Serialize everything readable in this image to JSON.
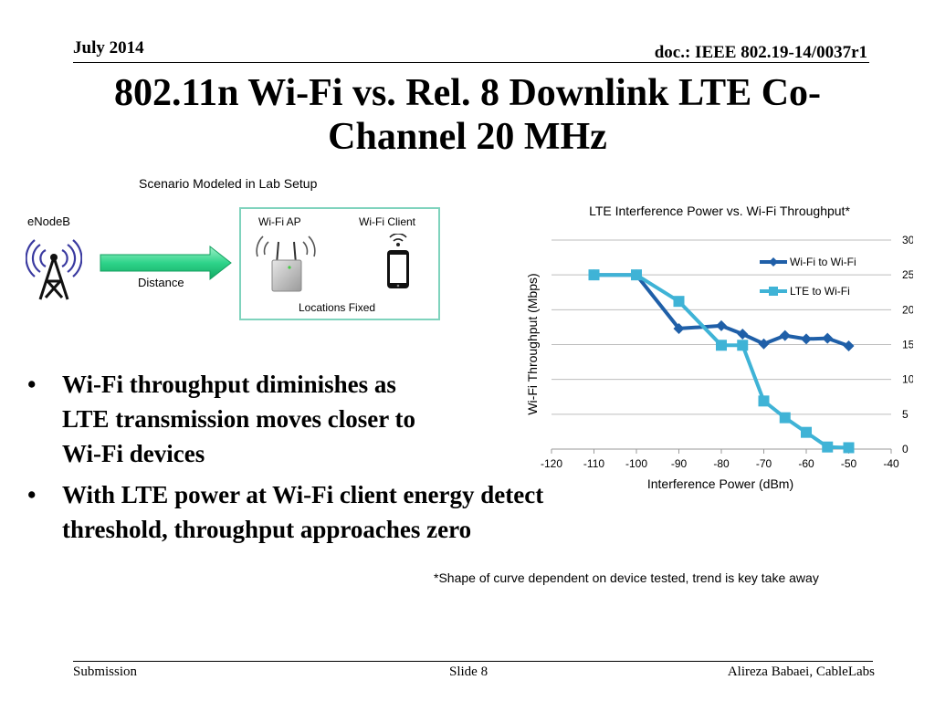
{
  "header": {
    "date": "July 2014",
    "doc": "doc.: IEEE 802.19-14/0037r1"
  },
  "slide": {
    "title": "802.11n Wi-Fi vs. Rel. 8 Downlink LTE Co-Channel 20 MHz"
  },
  "diagram": {
    "heading": "Scenario Modeled in Lab Setup",
    "enodeb": "eNodeB",
    "distance": "Distance",
    "wifi_ap": "Wi-Fi AP",
    "wifi_client": "Wi-Fi Client",
    "locations": "Locations Fixed",
    "icons": [
      "antenna-tower-icon",
      "arrow-right-icon",
      "wifi-access-point-icon",
      "smartphone-icon"
    ]
  },
  "bullets": {
    "marker": "•",
    "items": [
      "Wi-Fi throughput diminishes as LTE transmission moves closer to Wi-Fi devices",
      "With LTE power at Wi-Fi client energy detect threshold, throughput approaches zero"
    ]
  },
  "footnote": "*Shape of curve dependent on device tested, trend is key take away",
  "footer": {
    "left": "Submission",
    "center": "Slide 8",
    "right": "Alireza Babaei, CableLabs"
  },
  "chart_data": {
    "type": "line",
    "title": "LTE Interference Power vs. Wi-Fi Throughput*",
    "xlabel": "Interference Power (dBm)",
    "ylabel": "Wi-Fi Throughput (Mbps)",
    "xlim": [
      -120,
      -40
    ],
    "ylim": [
      0,
      30
    ],
    "xticks": [
      "-120",
      "-110",
      "-100",
      "-90",
      "-80",
      "-70",
      "-60",
      "-50",
      "-40"
    ],
    "yticks": [
      "0",
      "5",
      "10",
      "15",
      "20",
      "25",
      "30"
    ],
    "y_axis_position": "right",
    "grid": "horizontal",
    "legend_position": "top-right",
    "series": [
      {
        "name": "Wi-Fi to Wi-Fi",
        "color": "#1f5fa8",
        "marker": "diamond",
        "x": [
          -110,
          -100,
          -90,
          -80,
          -75,
          -70,
          -65,
          -60,
          -55,
          -50
        ],
        "y": [
          25,
          25,
          17.3,
          17.7,
          16.5,
          15.1,
          16.3,
          15.8,
          15.9,
          14.8
        ]
      },
      {
        "name": "LTE to Wi-Fi",
        "color": "#3fb3d6",
        "marker": "square",
        "x": [
          -110,
          -100,
          -90,
          -80,
          -75,
          -70,
          -65,
          -60,
          -55,
          -50
        ],
        "y": [
          25,
          25,
          21.2,
          14.9,
          14.9,
          6.9,
          4.5,
          2.4,
          0.3,
          0.2
        ]
      }
    ]
  }
}
